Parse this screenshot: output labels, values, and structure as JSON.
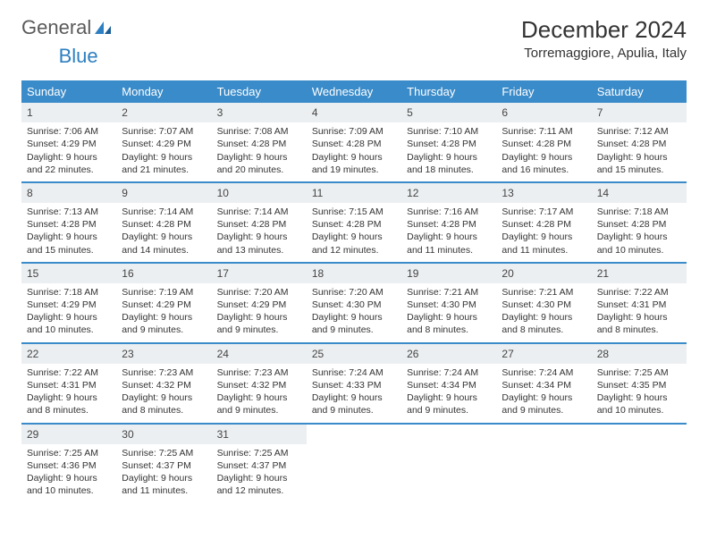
{
  "brand": {
    "part1": "General",
    "part2": "Blue"
  },
  "title": "December 2024",
  "location": "Torremaggiore, Apulia, Italy",
  "colors": {
    "header_bg": "#3a8bc9",
    "header_text": "#ffffff",
    "daynum_bg": "#eceff1",
    "row_border": "#3a8bc9",
    "logo_gray": "#5a5a5a",
    "logo_blue": "#2d7fc1"
  },
  "weekdays": [
    "Sunday",
    "Monday",
    "Tuesday",
    "Wednesday",
    "Thursday",
    "Friday",
    "Saturday"
  ],
  "weeks": [
    [
      {
        "n": "1",
        "sr": "Sunrise: 7:06 AM",
        "ss": "Sunset: 4:29 PM",
        "d1": "Daylight: 9 hours",
        "d2": "and 22 minutes."
      },
      {
        "n": "2",
        "sr": "Sunrise: 7:07 AM",
        "ss": "Sunset: 4:29 PM",
        "d1": "Daylight: 9 hours",
        "d2": "and 21 minutes."
      },
      {
        "n": "3",
        "sr": "Sunrise: 7:08 AM",
        "ss": "Sunset: 4:28 PM",
        "d1": "Daylight: 9 hours",
        "d2": "and 20 minutes."
      },
      {
        "n": "4",
        "sr": "Sunrise: 7:09 AM",
        "ss": "Sunset: 4:28 PM",
        "d1": "Daylight: 9 hours",
        "d2": "and 19 minutes."
      },
      {
        "n": "5",
        "sr": "Sunrise: 7:10 AM",
        "ss": "Sunset: 4:28 PM",
        "d1": "Daylight: 9 hours",
        "d2": "and 18 minutes."
      },
      {
        "n": "6",
        "sr": "Sunrise: 7:11 AM",
        "ss": "Sunset: 4:28 PM",
        "d1": "Daylight: 9 hours",
        "d2": "and 16 minutes."
      },
      {
        "n": "7",
        "sr": "Sunrise: 7:12 AM",
        "ss": "Sunset: 4:28 PM",
        "d1": "Daylight: 9 hours",
        "d2": "and 15 minutes."
      }
    ],
    [
      {
        "n": "8",
        "sr": "Sunrise: 7:13 AM",
        "ss": "Sunset: 4:28 PM",
        "d1": "Daylight: 9 hours",
        "d2": "and 15 minutes."
      },
      {
        "n": "9",
        "sr": "Sunrise: 7:14 AM",
        "ss": "Sunset: 4:28 PM",
        "d1": "Daylight: 9 hours",
        "d2": "and 14 minutes."
      },
      {
        "n": "10",
        "sr": "Sunrise: 7:14 AM",
        "ss": "Sunset: 4:28 PM",
        "d1": "Daylight: 9 hours",
        "d2": "and 13 minutes."
      },
      {
        "n": "11",
        "sr": "Sunrise: 7:15 AM",
        "ss": "Sunset: 4:28 PM",
        "d1": "Daylight: 9 hours",
        "d2": "and 12 minutes."
      },
      {
        "n": "12",
        "sr": "Sunrise: 7:16 AM",
        "ss": "Sunset: 4:28 PM",
        "d1": "Daylight: 9 hours",
        "d2": "and 11 minutes."
      },
      {
        "n": "13",
        "sr": "Sunrise: 7:17 AM",
        "ss": "Sunset: 4:28 PM",
        "d1": "Daylight: 9 hours",
        "d2": "and 11 minutes."
      },
      {
        "n": "14",
        "sr": "Sunrise: 7:18 AM",
        "ss": "Sunset: 4:28 PM",
        "d1": "Daylight: 9 hours",
        "d2": "and 10 minutes."
      }
    ],
    [
      {
        "n": "15",
        "sr": "Sunrise: 7:18 AM",
        "ss": "Sunset: 4:29 PM",
        "d1": "Daylight: 9 hours",
        "d2": "and 10 minutes."
      },
      {
        "n": "16",
        "sr": "Sunrise: 7:19 AM",
        "ss": "Sunset: 4:29 PM",
        "d1": "Daylight: 9 hours",
        "d2": "and 9 minutes."
      },
      {
        "n": "17",
        "sr": "Sunrise: 7:20 AM",
        "ss": "Sunset: 4:29 PM",
        "d1": "Daylight: 9 hours",
        "d2": "and 9 minutes."
      },
      {
        "n": "18",
        "sr": "Sunrise: 7:20 AM",
        "ss": "Sunset: 4:30 PM",
        "d1": "Daylight: 9 hours",
        "d2": "and 9 minutes."
      },
      {
        "n": "19",
        "sr": "Sunrise: 7:21 AM",
        "ss": "Sunset: 4:30 PM",
        "d1": "Daylight: 9 hours",
        "d2": "and 8 minutes."
      },
      {
        "n": "20",
        "sr": "Sunrise: 7:21 AM",
        "ss": "Sunset: 4:30 PM",
        "d1": "Daylight: 9 hours",
        "d2": "and 8 minutes."
      },
      {
        "n": "21",
        "sr": "Sunrise: 7:22 AM",
        "ss": "Sunset: 4:31 PM",
        "d1": "Daylight: 9 hours",
        "d2": "and 8 minutes."
      }
    ],
    [
      {
        "n": "22",
        "sr": "Sunrise: 7:22 AM",
        "ss": "Sunset: 4:31 PM",
        "d1": "Daylight: 9 hours",
        "d2": "and 8 minutes."
      },
      {
        "n": "23",
        "sr": "Sunrise: 7:23 AM",
        "ss": "Sunset: 4:32 PM",
        "d1": "Daylight: 9 hours",
        "d2": "and 8 minutes."
      },
      {
        "n": "24",
        "sr": "Sunrise: 7:23 AM",
        "ss": "Sunset: 4:32 PM",
        "d1": "Daylight: 9 hours",
        "d2": "and 9 minutes."
      },
      {
        "n": "25",
        "sr": "Sunrise: 7:24 AM",
        "ss": "Sunset: 4:33 PM",
        "d1": "Daylight: 9 hours",
        "d2": "and 9 minutes."
      },
      {
        "n": "26",
        "sr": "Sunrise: 7:24 AM",
        "ss": "Sunset: 4:34 PM",
        "d1": "Daylight: 9 hours",
        "d2": "and 9 minutes."
      },
      {
        "n": "27",
        "sr": "Sunrise: 7:24 AM",
        "ss": "Sunset: 4:34 PM",
        "d1": "Daylight: 9 hours",
        "d2": "and 9 minutes."
      },
      {
        "n": "28",
        "sr": "Sunrise: 7:25 AM",
        "ss": "Sunset: 4:35 PM",
        "d1": "Daylight: 9 hours",
        "d2": "and 10 minutes."
      }
    ],
    [
      {
        "n": "29",
        "sr": "Sunrise: 7:25 AM",
        "ss": "Sunset: 4:36 PM",
        "d1": "Daylight: 9 hours",
        "d2": "and 10 minutes."
      },
      {
        "n": "30",
        "sr": "Sunrise: 7:25 AM",
        "ss": "Sunset: 4:37 PM",
        "d1": "Daylight: 9 hours",
        "d2": "and 11 minutes."
      },
      {
        "n": "31",
        "sr": "Sunrise: 7:25 AM",
        "ss": "Sunset: 4:37 PM",
        "d1": "Daylight: 9 hours",
        "d2": "and 12 minutes."
      },
      {
        "empty": true
      },
      {
        "empty": true
      },
      {
        "empty": true
      },
      {
        "empty": true
      }
    ]
  ]
}
